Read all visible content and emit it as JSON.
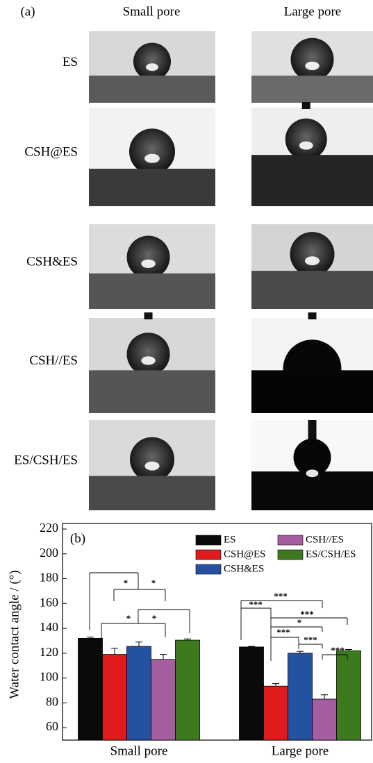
{
  "panel_a": {
    "label": "(a)",
    "columns": [
      "Small pore",
      "Large pore"
    ],
    "rows": [
      "ES",
      "CSH@ES",
      "CSH&ES",
      "CSH//ES",
      "ES/CSH/ES"
    ]
  },
  "chart_data": {
    "type": "bar",
    "panel_label": "(b)",
    "y_label": "Water contact angle / (°)",
    "categories": [
      "Small pore",
      "Large pore"
    ],
    "ylim": [
      50,
      220
    ],
    "yticks": [
      60,
      80,
      100,
      120,
      140,
      160,
      180,
      200,
      220
    ],
    "legend": "top-right",
    "series": [
      {
        "name": "ES",
        "color": "#0a0a0a",
        "values": [
          132,
          125
        ],
        "errors": [
          1,
          0.5
        ]
      },
      {
        "name": "CSH@ES",
        "color": "#e01b1b",
        "values": [
          119,
          93.5
        ],
        "errors": [
          5,
          2
        ]
      },
      {
        "name": "CSH&ES",
        "color": "#2452a0",
        "values": [
          125.5,
          120
        ],
        "errors": [
          3.5,
          1.5
        ]
      },
      {
        "name": "CSH//ES",
        "color": "#a55ea0",
        "values": [
          115,
          83
        ],
        "errors": [
          4,
          3.5
        ]
      },
      {
        "name": "ES/CSH/ES",
        "color": "#3d7a1e",
        "values": [
          130.5,
          122
        ],
        "errors": [
          1,
          1
        ]
      }
    ],
    "significance": [
      {
        "label": "*"
      },
      {
        "label": "*"
      },
      {
        "label": "*"
      },
      {
        "label": "*"
      },
      {
        "label": "***"
      },
      {
        "label": "***"
      },
      {
        "label": "***"
      },
      {
        "label": "*"
      },
      {
        "label": "***"
      },
      {
        "label": "***"
      },
      {
        "label": "***"
      }
    ]
  }
}
